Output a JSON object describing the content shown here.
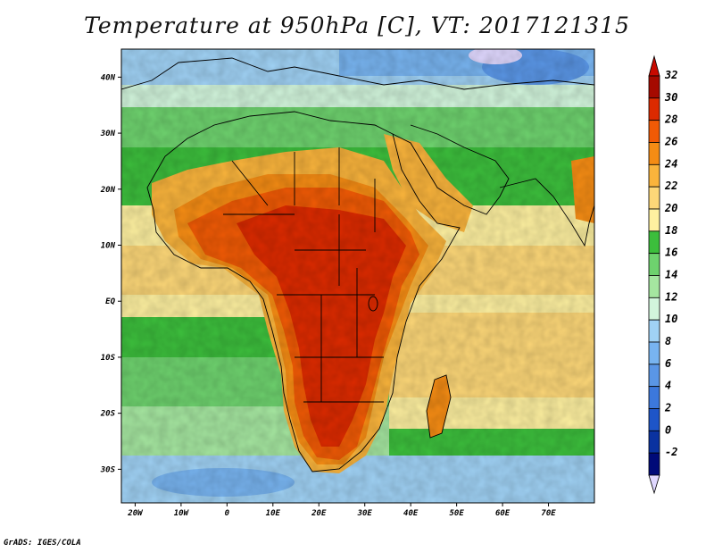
{
  "title": "Temperature at 950hPa [C], VT: 2017121315",
  "credit": "GrADS: IGES/COLA",
  "map": {
    "lon_range": [
      -23,
      80
    ],
    "lat_range": [
      -36,
      45
    ],
    "lat_labels": [
      {
        "label": "40N",
        "lat": 40
      },
      {
        "label": "30N",
        "lat": 30
      },
      {
        "label": "20N",
        "lat": 20
      },
      {
        "label": "10N",
        "lat": 10
      },
      {
        "label": "EQ",
        "lat": 0
      },
      {
        "label": "10S",
        "lat": -10
      },
      {
        "label": "20S",
        "lat": -20
      },
      {
        "label": "30S",
        "lat": -30
      }
    ],
    "lon_labels": [
      {
        "label": "20W",
        "lon": -20
      },
      {
        "label": "10W",
        "lon": -10
      },
      {
        "label": "0",
        "lon": 0
      },
      {
        "label": "10E",
        "lon": 10
      },
      {
        "label": "20E",
        "lon": 20
      },
      {
        "label": "30E",
        "lon": 30
      },
      {
        "label": "40E",
        "lon": 40
      },
      {
        "label": "50E",
        "lon": 50
      },
      {
        "label": "60E",
        "lon": 60
      },
      {
        "label": "70E",
        "lon": 70
      }
    ]
  },
  "colorbar": {
    "levels": [
      {
        "label": "32",
        "color": "#a50a00"
      },
      {
        "label": "30",
        "color": "#dc2a00"
      },
      {
        "label": "28",
        "color": "#f05a05"
      },
      {
        "label": "26",
        "color": "#f58c14"
      },
      {
        "label": "24",
        "color": "#fab43c"
      },
      {
        "label": "22",
        "color": "#fdd778"
      },
      {
        "label": "20",
        "color": "#fef0a0"
      },
      {
        "label": "18",
        "color": "#3cbe3c"
      },
      {
        "label": "16",
        "color": "#6ed26e"
      },
      {
        "label": "14",
        "color": "#a5e6a0"
      },
      {
        "label": "12",
        "color": "#d2f5dc"
      },
      {
        "label": "10",
        "color": "#a0d2f5"
      },
      {
        "label": "8",
        "color": "#78b4f0"
      },
      {
        "label": "6",
        "color": "#5a96e6"
      },
      {
        "label": "4",
        "color": "#3c78dc"
      },
      {
        "label": "2",
        "color": "#1e55c8"
      },
      {
        "label": "0",
        "color": "#0a32a0"
      },
      {
        "label": "-2",
        "color": "#000a78"
      }
    ],
    "top_color": "#c80a00",
    "bottom_color": "#e0d8ff"
  }
}
